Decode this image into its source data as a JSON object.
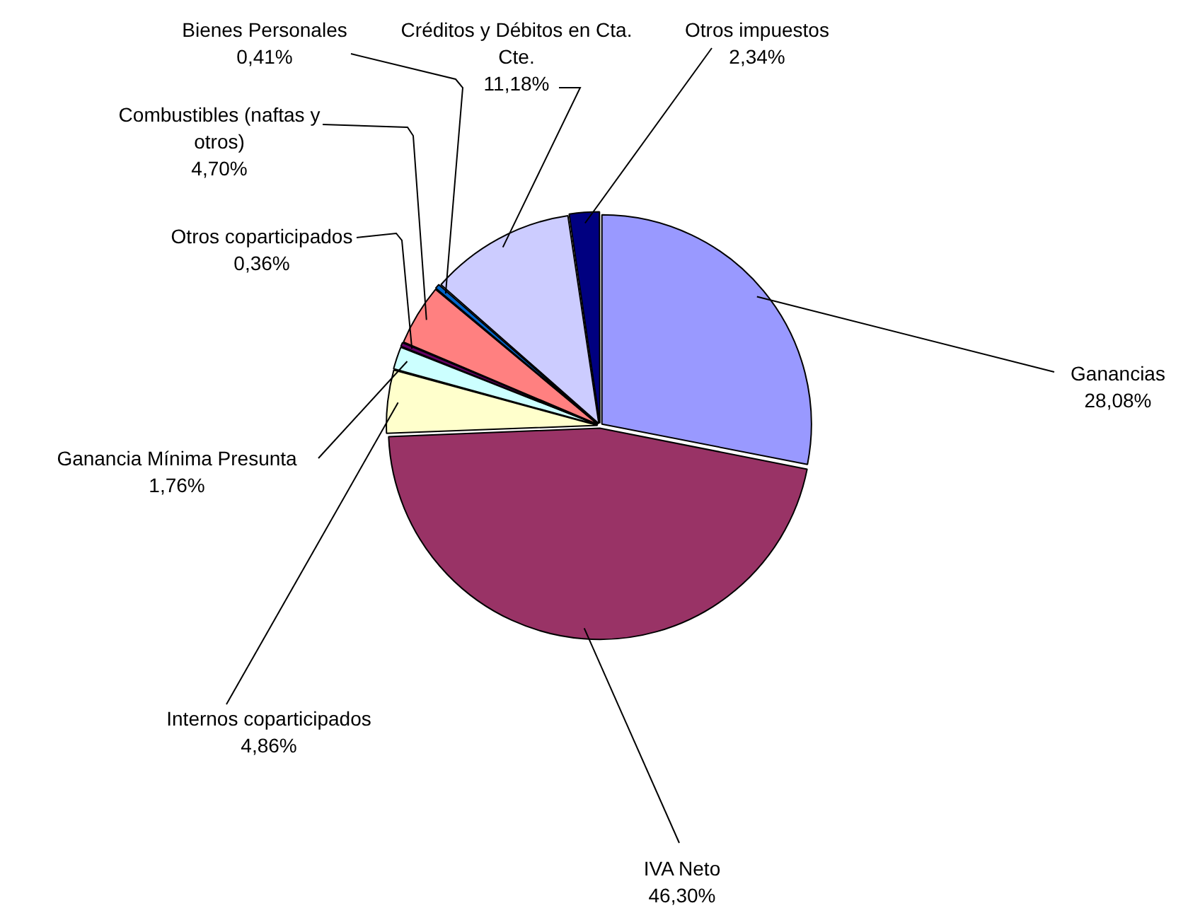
{
  "chart_data": {
    "type": "pie",
    "categories": [
      "Ganancias",
      "IVA Neto",
      "Internos coparticipados",
      "Ganancia Mínima Presunta",
      "Otros coparticipados",
      "Combustibles (naftas y otros)",
      "Bienes Personales",
      "Créditos y Débitos en Cta. Cte.",
      "Otros impuestos"
    ],
    "values": [
      28.08,
      46.3,
      4.86,
      1.76,
      0.36,
      4.7,
      0.41,
      11.18,
      2.34
    ],
    "value_labels": [
      "28,08%",
      "46,30%",
      "4,86%",
      "1,76%",
      "0,36%",
      "4,70%",
      "0,41%",
      "11,18%",
      "2,34%"
    ],
    "colors": [
      "#9999ff",
      "#993366",
      "#ffffcc",
      "#ccffff",
      "#660066",
      "#ff8080",
      "#0066cc",
      "#ccccff",
      "#000080"
    ],
    "legend": false
  }
}
